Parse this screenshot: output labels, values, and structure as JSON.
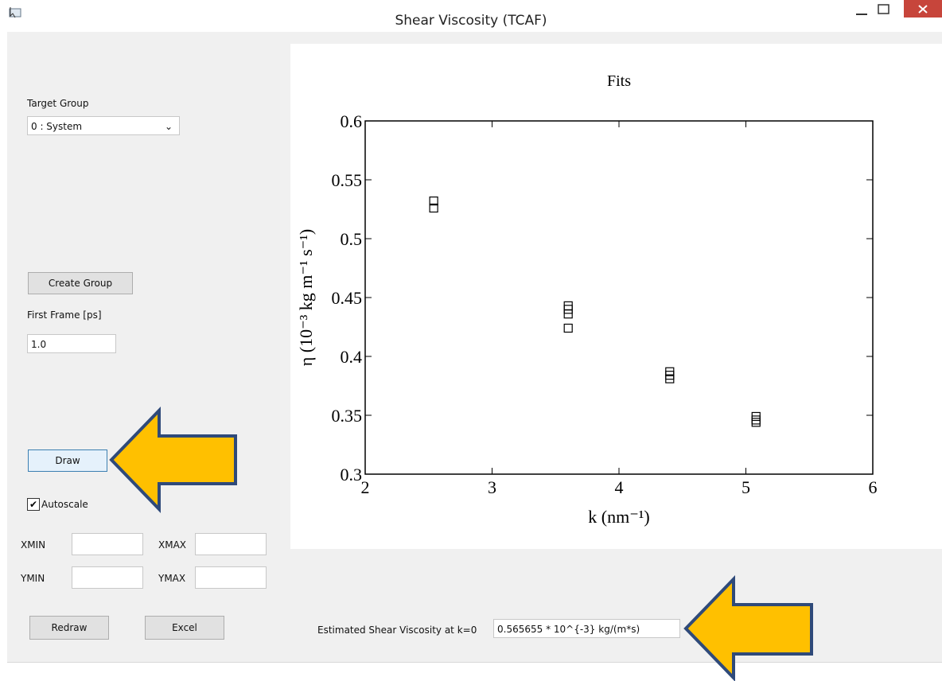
{
  "window": {
    "title": "Shear Viscosity (TCAF)"
  },
  "controls": {
    "target_group_label": "Target Group",
    "target_group_value": "0 : System",
    "create_group": "Create Group",
    "first_frame_label": "First Frame [ps]",
    "first_frame_value": "1.0",
    "draw": "Draw",
    "autoscale": "Autoscale",
    "xmin": "XMIN",
    "xmax": "XMAX",
    "ymin": "YMIN",
    "ymax": "YMAX",
    "redraw": "Redraw",
    "excel": "Excel",
    "result_label": "Estimated Shear Viscosity at k=0",
    "result_value": "0.565655 * 10^{-3} kg/(m*s)"
  },
  "chart_data": {
    "type": "scatter",
    "title": "Fits",
    "x_label": "k (nm⁻¹)",
    "y_label": "η (10⁻³ kg m⁻¹ s⁻¹)",
    "x": [
      2.54,
      2.54,
      3.6,
      3.6,
      3.6,
      3.6,
      4.4,
      4.4,
      4.4,
      5.08,
      5.08,
      5.08
    ],
    "values": [
      0.532,
      0.526,
      0.443,
      0.44,
      0.436,
      0.424,
      0.387,
      0.384,
      0.381,
      0.349,
      0.346,
      0.344
    ],
    "color": "#000000",
    "xlim": [
      2,
      6
    ],
    "xticks": [
      2,
      3,
      4,
      5,
      6
    ],
    "ylim": [
      0.3,
      0.6
    ],
    "yticks": [
      0.3,
      0.35,
      0.4,
      0.45,
      0.5,
      0.55,
      0.6
    ]
  }
}
